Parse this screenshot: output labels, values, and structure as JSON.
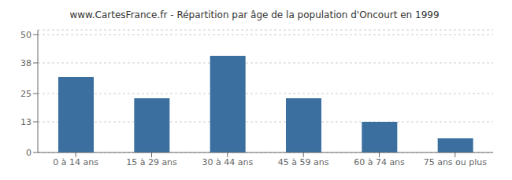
{
  "chart_data": {
    "type": "bar",
    "title": "www.CartesFrance.fr - Répartition par âge de la population d'Oncourt en 1999",
    "categories": [
      "0 à 14 ans",
      "15 à 29 ans",
      "30 à 44 ans",
      "45 à 59 ans",
      "60 à 74 ans",
      "75 ans ou plus"
    ],
    "values": [
      32,
      23,
      41,
      23,
      13,
      6
    ],
    "color": "#3a6f9f",
    "ylim": [
      0,
      52
    ],
    "yticks": [
      0,
      13,
      25,
      38,
      50
    ],
    "grid": true
  }
}
